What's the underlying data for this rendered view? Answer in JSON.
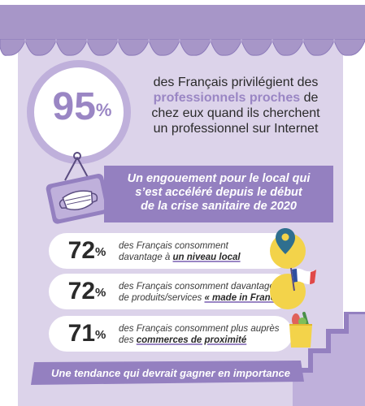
{
  "headline": {
    "percent": "95",
    "percent_sign": "%",
    "line1": "des Français privilégient des",
    "highlight": "professionnels proches",
    "line2_rest": " de",
    "line3": "chez eux quand ils cherchent",
    "line4": "un professionnel sur Internet"
  },
  "banner": {
    "line1": "Un engouement pour le local qui",
    "line2": "s’est accéléré depuis le début",
    "line3": "de la crise sanitaire de 2020"
  },
  "stats": [
    {
      "value": "72",
      "sign": "%",
      "line1": "des Français consomment",
      "line2_pre": "davantage à ",
      "line2_bold": "un niveau local",
      "icon": "map-pin-icon"
    },
    {
      "value": "72",
      "sign": "%",
      "line1": "des Français consomment davantage",
      "line2_pre": "de produits/services ",
      "line2_bold": "« made in France »",
      "icon": "french-flag-icon"
    },
    {
      "value": "71",
      "sign": "%",
      "line1": "des Français consomment plus auprès",
      "line2_pre": "des ",
      "line2_bold": "commerces de proximité",
      "icon": "shopping-bag-icon"
    }
  ],
  "footer": {
    "text": "Une tendance qui devrait gagner en importance"
  },
  "colors": {
    "lavender_light": "#dcd3ea",
    "lavender": "#a796c8",
    "purple": "#9480c0",
    "highlight": "#9a86c4",
    "yellow": "#f3d34a"
  }
}
